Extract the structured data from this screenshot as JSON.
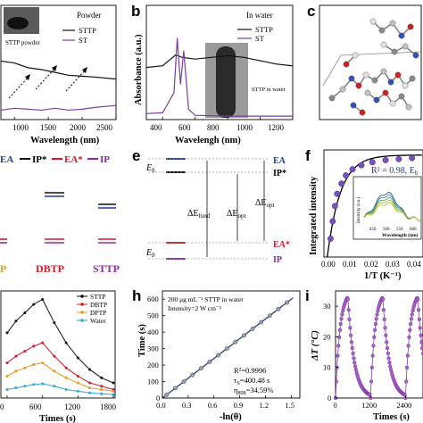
{
  "colors": {
    "sttp": "#111111",
    "st": "#7a3fa0",
    "dbtp": "#d11a2a",
    "dptp": "#e59a20",
    "water": "#2aa6d8",
    "ea": "#1f3f8f",
    "ip_star": "#111111",
    "ea_star": "#d11a2a",
    "ip": "#8a2aa0"
  },
  "panels": {
    "a": {
      "label": "",
      "inset_label": "Powder",
      "legend": [
        "STTP",
        "ST"
      ],
      "annotation": "STTP powder",
      "x_ticks": [
        "1000",
        "1500",
        "2000",
        "2500"
      ],
      "xlabel": "Wavelength (nm)"
    },
    "b": {
      "label": "b",
      "inset_label": "In water",
      "legend": [
        "STTP",
        "ST"
      ],
      "annotation": "STTP in water",
      "ylabel": "Absorbance (a.u.)",
      "x_ticks": [
        "400",
        "600",
        "800",
        "1000",
        "1200"
      ],
      "xlabel": "Wavelengh (nm)"
    },
    "c": {
      "label": "c"
    },
    "d": {
      "header": [
        "EA",
        "IP*",
        "EA*",
        "IP"
      ],
      "categories": [
        "P",
        "DBTP",
        "STTP"
      ]
    },
    "e": {
      "label": "e",
      "labels": [
        "EA",
        "IP*",
        "EA*",
        "IP"
      ],
      "eb": "E",
      "eb_sub": "b",
      "d_fund": "ΔE",
      "d_fund_sub": "fund",
      "d_opt": "ΔE",
      "d_opt_sub": "opt"
    },
    "f": {
      "label": "f",
      "ylabel": "Integrated intensity",
      "xlabel": "1/T (K⁻¹)",
      "x_ticks": [
        "0.00",
        "0.01",
        "0.02",
        "0.03",
        "0.04"
      ],
      "fit_text": "R² = 0.98, E",
      "fit_sub": "b",
      "inset_ylabel": "Intensity (a.u.)",
      "inset_xlabel": "Wavelength (nm)",
      "inset_ticks": [
        "450",
        "500",
        "550",
        "600"
      ]
    },
    "g": {
      "legend": [
        "STTP",
        "DBTP",
        "DPTP",
        "Water"
      ],
      "x_ticks": [
        "0",
        "600",
        "1200",
        "1800"
      ],
      "xlabel": "Times (s)"
    },
    "h": {
      "label": "h",
      "note1": "200 μg mL⁻¹ STTP in water",
      "note2": "Intensity=2 W cm⁻²",
      "ylabel": "Time (s)",
      "xlabel": "-ln(θ)",
      "x_ticks": [
        "0.0",
        "0.3",
        "0.6",
        "0.9",
        "1.2",
        "1.5"
      ],
      "y_ticks": [
        "0",
        "100",
        "200",
        "300",
        "400",
        "500",
        "600"
      ],
      "r2": "R²=0.9996",
      "tau": "τ",
      "tau_sub": "S",
      "tau_val": "=400.48 s",
      "eta": "η",
      "eta_sub": "808",
      "eta_val": "=34.59%"
    },
    "i": {
      "label": "i",
      "ylabel": "ΔT (°C)",
      "y_ticks": [
        "0",
        "10",
        "20",
        "30"
      ],
      "xlabel": "Times (s)",
      "x_ticks": [
        "0",
        "1200",
        "2400"
      ]
    }
  },
  "chart_data": [
    {
      "type": "line",
      "panel": "a",
      "xlabel": "Wavelength (nm)",
      "xlim": [
        800,
        2500
      ],
      "series": [
        {
          "name": "STTP",
          "x": [
            800,
            1000,
            1200,
            1400,
            1600,
            1800,
            2000,
            2200,
            2500
          ],
          "y": [
            0.62,
            0.6,
            0.55,
            0.53,
            0.5,
            0.47,
            0.46,
            0.45,
            0.43
          ]
        },
        {
          "name": "ST",
          "x": [
            800,
            1000,
            1200,
            1400,
            1600,
            1800,
            2000,
            2200,
            2500
          ],
          "y": [
            0.1,
            0.12,
            0.11,
            0.1,
            0.12,
            0.1,
            0.11,
            0.13,
            0.15
          ]
        }
      ]
    },
    {
      "type": "line",
      "panel": "b",
      "xlabel": "Wavelengh (nm)",
      "ylabel": "Absorbance (a.u.)",
      "xlim": [
        300,
        1200
      ],
      "series": [
        {
          "name": "STTP",
          "x": [
            300,
            400,
            480,
            520,
            600,
            700,
            800,
            900,
            1000,
            1100,
            1200
          ],
          "y": [
            0.6,
            0.62,
            0.75,
            0.72,
            0.7,
            0.72,
            0.74,
            0.72,
            0.68,
            0.64,
            0.62
          ]
        },
        {
          "name": "ST",
          "x": [
            300,
            400,
            470,
            490,
            510,
            530,
            560,
            600,
            800,
            1000,
            1200
          ],
          "y": [
            0.05,
            0.06,
            0.3,
            0.95,
            0.4,
            0.8,
            0.1,
            0.03,
            0.02,
            0.02,
            0.02
          ]
        }
      ]
    },
    {
      "type": "scatter",
      "panel": "f",
      "xlabel": "1/T (K⁻¹)",
      "ylabel": "Integrated intensity",
      "xlim": [
        0,
        0.045
      ],
      "series": [
        {
          "name": "",
          "x": [
            0.003,
            0.004,
            0.005,
            0.006,
            0.008,
            0.01,
            0.013,
            0.017,
            0.022,
            0.028,
            0.034,
            0.04
          ],
          "y": [
            0.18,
            0.35,
            0.5,
            0.62,
            0.72,
            0.8,
            0.86,
            0.9,
            0.93,
            0.95,
            0.96,
            0.97
          ]
        }
      ]
    },
    {
      "type": "line",
      "panel": "g",
      "xlabel": "Times (s)",
      "xlim": [
        0,
        1800
      ],
      "series": [
        {
          "name": "STTP",
          "x": [
            0,
            150,
            300,
            450,
            600,
            800,
            1000,
            1200,
            1400,
            1600,
            1800
          ],
          "y": [
            38,
            45,
            50,
            55,
            58,
            44,
            32,
            23,
            16,
            11,
            8
          ]
        },
        {
          "name": "DBTP",
          "x": [
            0,
            150,
            300,
            450,
            600,
            800,
            1000,
            1200,
            1400,
            1600,
            1800
          ],
          "y": [
            20,
            24,
            27,
            30,
            32,
            24,
            17,
            12,
            8,
            6,
            4
          ]
        },
        {
          "name": "DPTP",
          "x": [
            0,
            150,
            300,
            450,
            600,
            800,
            1000,
            1200,
            1400,
            1600,
            1800
          ],
          "y": [
            12,
            15,
            17,
            19,
            20,
            15,
            11,
            8,
            5,
            4,
            3
          ]
        },
        {
          "name": "Water",
          "x": [
            0,
            150,
            300,
            450,
            600,
            800,
            1000,
            1200,
            1400,
            1600,
            1800
          ],
          "y": [
            4,
            5,
            6,
            7,
            7.5,
            6,
            4,
            3,
            2,
            1.5,
            1
          ]
        }
      ]
    },
    {
      "type": "scatter",
      "panel": "h",
      "xlabel": "-ln(θ)",
      "ylabel": "Time (s)",
      "xlim": [
        0,
        1.6
      ],
      "ylim": [
        0,
        650
      ],
      "series": [
        {
          "name": "",
          "x": [
            0.05,
            0.15,
            0.25,
            0.35,
            0.45,
            0.55,
            0.65,
            0.75,
            0.85,
            0.95,
            1.05,
            1.15,
            1.25,
            1.35,
            1.45
          ],
          "y": [
            20,
            60,
            100,
            140,
            180,
            220,
            260,
            300,
            340,
            380,
            420,
            460,
            500,
            540,
            580
          ]
        }
      ]
    },
    {
      "type": "scatter",
      "panel": "i",
      "xlabel": "Times (s)",
      "ylabel": "ΔT (°C)",
      "xlim": [
        0,
        3000
      ],
      "ylim": [
        0,
        35
      ],
      "series": [
        {
          "name": "",
          "x": [
            0,
            200,
            400,
            600,
            800,
            1000,
            1200,
            1400,
            1600,
            1800,
            2000,
            2200,
            2400,
            2600,
            2800,
            3000
          ],
          "y": [
            0,
            20,
            33,
            20,
            10,
            4,
            1,
            20,
            33,
            20,
            10,
            4,
            1,
            20,
            33,
            20
          ]
        }
      ]
    }
  ]
}
